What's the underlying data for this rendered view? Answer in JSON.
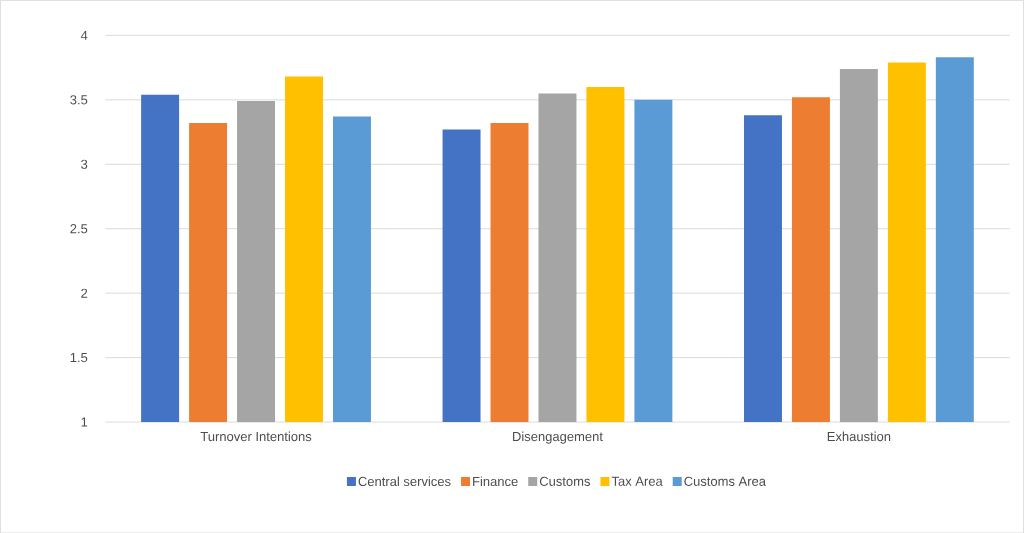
{
  "chart_data": {
    "type": "bar",
    "categories": [
      "Turnover Intentions",
      "Disengagement",
      "Exhaustion"
    ],
    "series": [
      {
        "name": "Central services",
        "color": "#4472c4",
        "values": [
          3.54,
          3.27,
          3.38
        ]
      },
      {
        "name": "Finance",
        "color": "#ed7d31",
        "values": [
          3.32,
          3.32,
          3.52
        ]
      },
      {
        "name": "Customs",
        "color": "#a5a5a5",
        "values": [
          3.49,
          3.55,
          3.74
        ]
      },
      {
        "name": "Tax Area",
        "color": "#ffc000",
        "values": [
          3.68,
          3.6,
          3.79
        ]
      },
      {
        "name": "Customs Area",
        "color": "#5b9bd5",
        "values": [
          3.37,
          3.5,
          3.83
        ]
      }
    ],
    "ylim": [
      1,
      4
    ],
    "yticks": [
      1,
      1.5,
      2,
      2.5,
      3,
      3.5,
      4
    ],
    "grid": "y",
    "legend": "bottom"
  }
}
